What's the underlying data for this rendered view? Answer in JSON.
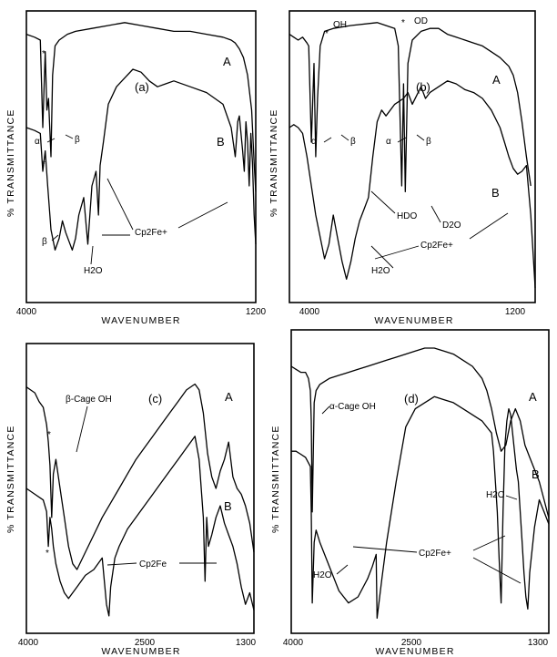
{
  "chart_data": [
    {
      "type": "line",
      "panel": "(a)",
      "xlabel": "WAVENUMBER",
      "ylabel": "% TRANSMITTANCE",
      "xticks": [
        "4000",
        "1200"
      ],
      "xlim": [
        4000,
        1200
      ],
      "series": [
        {
          "name": "A",
          "x": [
            4000,
            3900,
            3830,
            3800,
            3770,
            3750,
            3730,
            3700,
            3680,
            3650,
            3600,
            3500,
            3400,
            3200,
            3000,
            2800,
            2600,
            2400,
            2200,
            2000,
            1800,
            1600,
            1500,
            1450,
            1400,
            1350,
            1300,
            1250,
            1220,
            1200
          ],
          "values": [
            92,
            91,
            90,
            60,
            86,
            66,
            70,
            50,
            78,
            88,
            90,
            92,
            93,
            94,
            95,
            96,
            95,
            94,
            93,
            93,
            92,
            91,
            90,
            89,
            87,
            84,
            78,
            66,
            48,
            38
          ]
        },
        {
          "name": "B",
          "x": [
            4000,
            3900,
            3830,
            3800,
            3770,
            3740,
            3700,
            3650,
            3600,
            3560,
            3520,
            3480,
            3440,
            3400,
            3360,
            3300,
            3250,
            3200,
            3150,
            3120,
            3100,
            3060,
            3000,
            2900,
            2800,
            2700,
            2600,
            2500,
            2400,
            2300,
            2200,
            2000,
            1800,
            1600,
            1500,
            1450,
            1420,
            1400,
            1380,
            1360,
            1340,
            1320,
            1300,
            1280,
            1260,
            1240,
            1220,
            1200
          ],
          "values": [
            60,
            59,
            58,
            45,
            52,
            40,
            25,
            18,
            22,
            28,
            24,
            21,
            18,
            22,
            30,
            36,
            20,
            40,
            45,
            30,
            47,
            55,
            68,
            74,
            77,
            80,
            79,
            76,
            74,
            75,
            76,
            74,
            72,
            68,
            60,
            50,
            62,
            64,
            58,
            52,
            45,
            62,
            55,
            40,
            58,
            48,
            30,
            20
          ]
        }
      ],
      "annotations": [
        "(a)",
        "A",
        "B",
        "α",
        "β",
        "β",
        "*",
        "*",
        "Cp2Fe+",
        "H2O"
      ]
    },
    {
      "type": "line",
      "panel": "(b)",
      "xlabel": "WAVENUMBER",
      "ylabel": "% TRANSMITTANCE",
      "xticks": [
        "4000",
        "1200"
      ],
      "xlim": [
        4000,
        1200
      ],
      "series": [
        {
          "name": "A",
          "x": [
            4000,
            3950,
            3900,
            3850,
            3800,
            3780,
            3750,
            3720,
            3700,
            3680,
            3650,
            3600,
            3500,
            3300,
            3000,
            2800,
            2760,
            2720,
            2700,
            2680,
            2650,
            2600,
            2500,
            2400,
            2300,
            2200,
            2100,
            2000,
            1900,
            1800,
            1700,
            1600,
            1500,
            1450,
            1400,
            1350,
            1300,
            1250
          ],
          "values": [
            92,
            91,
            90,
            91,
            89,
            88,
            55,
            82,
            50,
            70,
            88,
            93,
            94,
            95,
            96,
            94,
            88,
            40,
            75,
            38,
            82,
            90,
            93,
            94,
            94,
            92,
            91,
            90,
            89,
            88,
            86,
            84,
            81,
            78,
            72,
            62,
            50,
            40
          ]
        },
        {
          "name": "B",
          "x": [
            4000,
            3950,
            3900,
            3850,
            3800,
            3700,
            3600,
            3550,
            3500,
            3450,
            3400,
            3350,
            3300,
            3250,
            3200,
            3150,
            3100,
            3050,
            3000,
            2950,
            2900,
            2800,
            2700,
            2650,
            2600,
            2500,
            2450,
            2400,
            2300,
            2200,
            2100,
            2000,
            1900,
            1800,
            1700,
            1600,
            1550,
            1500,
            1450,
            1400,
            1350,
            1300,
            1250,
            1220,
            1200
          ],
          "values": [
            60,
            61,
            60,
            58,
            50,
            30,
            15,
            20,
            30,
            22,
            14,
            8,
            14,
            22,
            28,
            32,
            36,
            50,
            62,
            66,
            64,
            68,
            70,
            72,
            68,
            74,
            70,
            72,
            74,
            76,
            75,
            73,
            72,
            70,
            66,
            60,
            55,
            50,
            46,
            44,
            45,
            47,
            30,
            15,
            5
          ]
        }
      ],
      "annotations": [
        "(b)",
        "OH",
        "OD",
        "A",
        "B",
        "α",
        "β",
        "α",
        "β",
        "*",
        "*",
        "HDO",
        "D2O",
        "Cp2Fe+",
        "H2O"
      ]
    },
    {
      "type": "line",
      "panel": "(c)",
      "xlabel": "WAVENUMBER",
      "ylabel": "% TRANSMITTANCE",
      "xticks": [
        "4000",
        "2500",
        "1300"
      ],
      "xlim": [
        4000,
        1300
      ],
      "series": [
        {
          "name": "A",
          "x": [
            4000,
            3950,
            3900,
            3850,
            3800,
            3760,
            3740,
            3720,
            3700,
            3680,
            3650,
            3600,
            3550,
            3500,
            3450,
            3400,
            3300,
            3200,
            3100,
            3000,
            2900,
            2800,
            2700,
            2600,
            2500,
            2400,
            2300,
            2200,
            2100,
            2000,
            1950,
            1900,
            1850,
            1800,
            1750,
            1700,
            1650,
            1600,
            1550,
            1500,
            1450,
            1400,
            1350,
            1300
          ],
          "values": [
            85,
            84,
            83,
            80,
            78,
            72,
            66,
            58,
            40,
            55,
            60,
            50,
            40,
            30,
            24,
            22,
            28,
            34,
            40,
            45,
            50,
            55,
            60,
            64,
            68,
            72,
            76,
            80,
            84,
            86,
            84,
            76,
            62,
            54,
            50,
            56,
            60,
            66,
            54,
            50,
            48,
            44,
            38,
            28
          ]
        },
        {
          "name": "B",
          "x": [
            4000,
            3900,
            3800,
            3760,
            3740,
            3720,
            3700,
            3680,
            3650,
            3600,
            3550,
            3500,
            3450,
            3400,
            3300,
            3200,
            3100,
            3050,
            3020,
            3000,
            2950,
            2900,
            2800,
            2700,
            2600,
            2500,
            2400,
            2300,
            2200,
            2100,
            2000,
            1950,
            1900,
            1880,
            1860,
            1840,
            1800,
            1750,
            1700,
            1650,
            1600,
            1550,
            1500,
            1450,
            1400,
            1350,
            1300
          ],
          "values": [
            50,
            48,
            46,
            42,
            30,
            40,
            36,
            30,
            24,
            18,
            14,
            12,
            14,
            16,
            20,
            22,
            26,
            10,
            6,
            16,
            26,
            30,
            36,
            40,
            44,
            48,
            52,
            56,
            60,
            64,
            68,
            60,
            40,
            18,
            40,
            30,
            34,
            40,
            44,
            38,
            34,
            30,
            24,
            16,
            10,
            14,
            8
          ]
        }
      ],
      "annotations": [
        "(c)",
        "A",
        "B",
        "*",
        "*",
        "β-Cage OH",
        "Cp2Fe"
      ]
    },
    {
      "type": "line",
      "panel": "(d)",
      "xlabel": "WAVENUMBER",
      "ylabel": "% TRANSMITTANCE",
      "xticks": [
        "4000",
        "2500",
        "1300"
      ],
      "xlim": [
        4000,
        1300
      ],
      "series": [
        {
          "name": "A",
          "x": [
            4000,
            3950,
            3900,
            3850,
            3820,
            3800,
            3790,
            3780,
            3760,
            3740,
            3700,
            3650,
            3600,
            3500,
            3400,
            3300,
            3200,
            3100,
            3000,
            2900,
            2800,
            2700,
            2600,
            2500,
            2400,
            2300,
            2200,
            2100,
            2000,
            1950,
            1900,
            1850,
            1800,
            1750,
            1700,
            1650,
            1600,
            1550,
            1500,
            1450,
            1400,
            1350,
            1300
          ],
          "values": [
            88,
            87,
            86,
            86,
            84,
            80,
            70,
            40,
            76,
            80,
            82,
            83,
            84,
            85,
            86,
            87,
            88,
            89,
            90,
            91,
            92,
            93,
            94,
            94,
            93,
            92,
            90,
            88,
            84,
            80,
            74,
            66,
            60,
            62,
            70,
            74,
            70,
            62,
            58,
            54,
            50,
            44,
            38
          ]
        },
        {
          "name": "B",
          "x": [
            4000,
            3950,
            3900,
            3850,
            3800,
            3790,
            3780,
            3760,
            3740,
            3700,
            3600,
            3500,
            3400,
            3300,
            3200,
            3150,
            3130,
            3110,
            3100,
            3050,
            3000,
            2900,
            2800,
            2700,
            2600,
            2500,
            2400,
            2300,
            2200,
            2100,
            2000,
            1950,
            1900,
            1880,
            1860,
            1840,
            1820,
            1800,
            1780,
            1760,
            1740,
            1720,
            1700,
            1680,
            1660,
            1640,
            1620,
            1600,
            1580,
            1560,
            1540,
            1520,
            1500,
            1450,
            1400,
            1350,
            1300
          ],
          "values": [
            60,
            60,
            59,
            58,
            55,
            40,
            10,
            30,
            34,
            30,
            22,
            14,
            10,
            12,
            18,
            22,
            24,
            26,
            5,
            18,
            30,
            50,
            68,
            74,
            76,
            78,
            77,
            76,
            74,
            72,
            70,
            68,
            66,
            60,
            50,
            40,
            24,
            10,
            40,
            62,
            70,
            74,
            72,
            66,
            60,
            54,
            50,
            40,
            30,
            20,
            12,
            8,
            20,
            35,
            44,
            40,
            36
          ]
        }
      ],
      "annotations": [
        "(d)",
        "A",
        "B",
        "α-Cage OH",
        "H2O",
        "Cp2Fe+",
        "H2O"
      ]
    }
  ]
}
